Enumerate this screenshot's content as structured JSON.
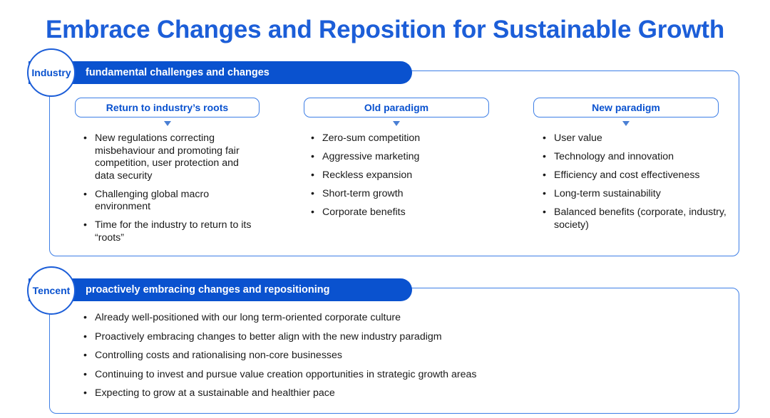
{
  "title": "Embrace Changes and Reposition for Sustainable Growth",
  "industry": {
    "circle_label": "Industry",
    "banner_text": "fundamental challenges and changes",
    "columns": [
      {
        "header": "Return to industry’s roots",
        "items": [
          "New regulations correcting misbehaviour and promoting fair competition, user protection and data security",
          "Challenging global macro environment",
          "Time for the industry to return to its “roots”"
        ]
      },
      {
        "header": "Old paradigm",
        "items": [
          "Zero-sum competition",
          "Aggressive marketing",
          "Reckless expansion",
          "Short-term growth",
          "Corporate benefits"
        ]
      },
      {
        "header": "New paradigm",
        "items": [
          "User value",
          "Technology and innovation",
          "Efficiency and cost effectiveness",
          "Long-term sustainability",
          "Balanced benefits (corporate, industry, society)"
        ]
      }
    ]
  },
  "tencent": {
    "circle_label": "Tencent",
    "banner_text": "proactively embracing changes and repositioning",
    "items": [
      "Already well-positioned with our long term-oriented corporate culture",
      "Proactively embracing changes to better align with the new industry paradigm",
      "Controlling costs and rationalising non-core businesses",
      "Continuing to invest and pursue value creation opportunities in strategic growth areas",
      "Expecting to grow at a sustainable and healthier pace"
    ]
  },
  "colors": {
    "title": "#1c5ed8",
    "banner": "#0a52cf",
    "border": "#3d7ee6"
  }
}
